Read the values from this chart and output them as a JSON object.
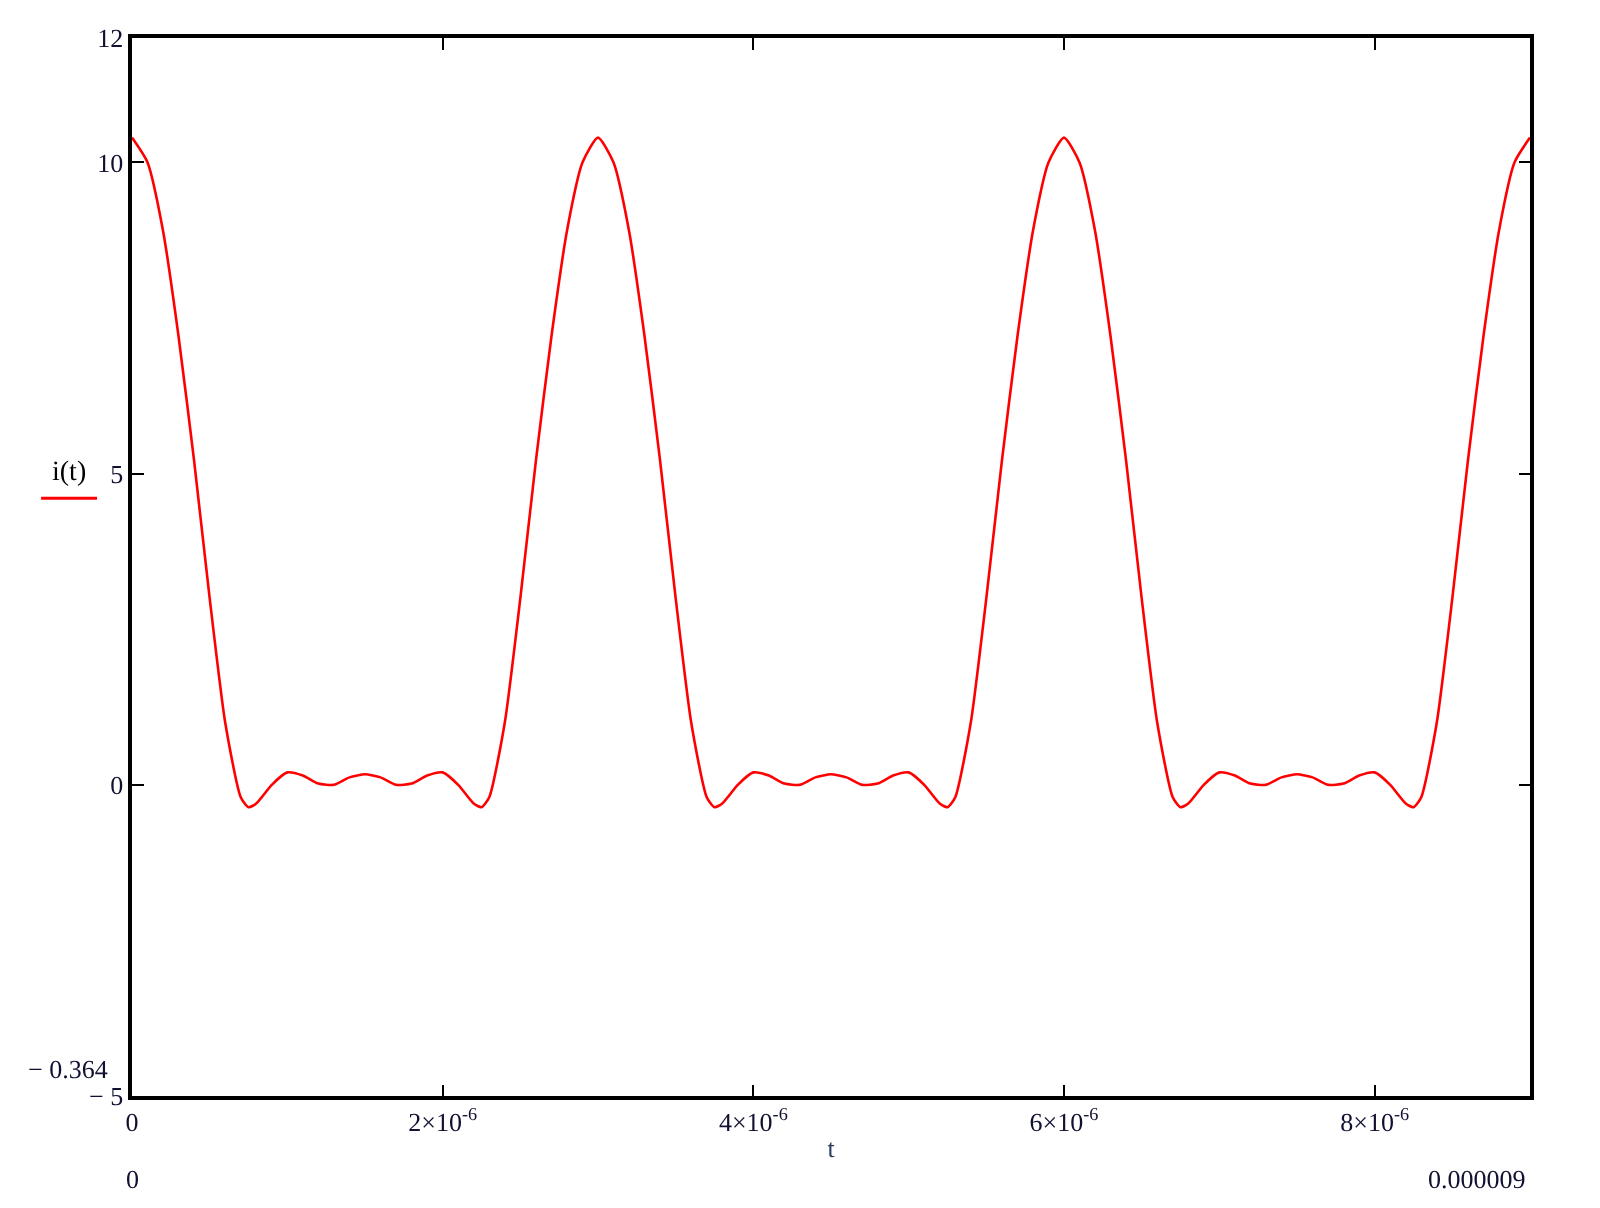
{
  "chart_data": {
    "type": "line",
    "xlabel": "t",
    "ylabel": "i(t)",
    "x": [
      0,
      1e-07,
      2e-07,
      3e-07,
      4e-07,
      5e-07,
      6e-07,
      7e-07,
      7.5e-07,
      8e-07,
      9e-07,
      1e-06,
      1.1e-06,
      1.2e-06,
      1.3e-06,
      1.4e-06,
      1.5e-06,
      1.6e-06,
      1.7e-06,
      1.8e-06,
      1.9e-06,
      2e-06,
      2.1e-06,
      2.2e-06,
      2.25e-06,
      2.3e-06,
      2.4e-06,
      2.5e-06,
      2.6e-06,
      2.7e-06,
      2.8e-06,
      2.9e-06,
      3e-06,
      3.1e-06,
      3.2e-06,
      3.3e-06,
      3.4e-06,
      3.5e-06,
      3.6e-06,
      3.7e-06,
      3.75e-06,
      3.8e-06,
      3.9e-06,
      4e-06,
      4.1e-06,
      4.2e-06,
      4.3e-06,
      4.4e-06,
      4.5e-06,
      4.6e-06,
      4.7e-06,
      4.8e-06,
      4.9e-06,
      5e-06,
      5.1e-06,
      5.2e-06,
      5.25e-06,
      5.3e-06,
      5.4e-06,
      5.5e-06,
      5.6e-06,
      5.7e-06,
      5.8e-06,
      5.9e-06,
      6e-06,
      6.1e-06,
      6.2e-06,
      6.3e-06,
      6.4e-06,
      6.5e-06,
      6.6e-06,
      6.7e-06,
      6.75e-06,
      6.8e-06,
      6.9e-06,
      7e-06,
      7.1e-06,
      7.2e-06,
      7.3e-06,
      7.4e-06,
      7.5e-06,
      7.6e-06,
      7.7e-06,
      7.8e-06,
      7.9e-06,
      8e-06,
      8.1e-06,
      8.2e-06,
      8.25e-06,
      8.3e-06,
      8.4e-06,
      8.5e-06,
      8.6e-06,
      8.7e-06,
      8.8e-06,
      8.9e-06,
      9e-06
    ],
    "series": [
      {
        "color": "#ff0000",
        "values": [
          10.4,
          10.0,
          8.9,
          7.2,
          5.2,
          3.0,
          1.0,
          -0.2,
          -0.36,
          -0.3,
          0.0,
          0.2,
          0.15,
          0.02,
          0.0,
          0.12,
          0.17,
          0.12,
          0.0,
          0.02,
          0.15,
          0.2,
          0.0,
          -0.3,
          -0.36,
          -0.2,
          1.0,
          3.0,
          5.2,
          7.2,
          8.9,
          10.0,
          10.4,
          10.0,
          8.9,
          7.2,
          5.2,
          3.0,
          1.0,
          -0.2,
          -0.36,
          -0.3,
          0.0,
          0.2,
          0.15,
          0.02,
          0.0,
          0.12,
          0.17,
          0.12,
          0.0,
          0.02,
          0.15,
          0.2,
          0.0,
          -0.3,
          -0.36,
          -0.2,
          1.0,
          3.0,
          5.2,
          7.2,
          8.9,
          10.0,
          10.4,
          10.0,
          8.9,
          7.2,
          5.2,
          3.0,
          1.0,
          -0.2,
          -0.36,
          -0.3,
          0.0,
          0.2,
          0.15,
          0.02,
          0.0,
          0.12,
          0.17,
          0.12,
          0.0,
          0.02,
          0.15,
          0.2,
          0.0,
          -0.3,
          -0.36,
          -0.2,
          1.0,
          3.0,
          5.2,
          7.2,
          8.9,
          10.0,
          10.4
        ]
      }
    ],
    "xlim": [
      0,
      9e-06
    ],
    "xticks": [
      0,
      {
        "value": 2e-06,
        "label": "2×10$^{-6}$"
      },
      {
        "value": 4e-06,
        "label": "4×10$^{-6}$"
      },
      {
        "value": 6e-06,
        "label": "6×10$^{-6}$"
      },
      {
        "value": 8e-06,
        "label": "8×10$^{-6}$"
      }
    ],
    "ylim": [
      -5,
      12
    ],
    "yticks": [
      {
        "value": -5,
        "label": "− 5"
      },
      0,
      5,
      10,
      12
    ],
    "annotations": [
      "0",
      "0.000009",
      "− 0.364"
    ],
    "marker": "none",
    "line_style": "solid"
  }
}
